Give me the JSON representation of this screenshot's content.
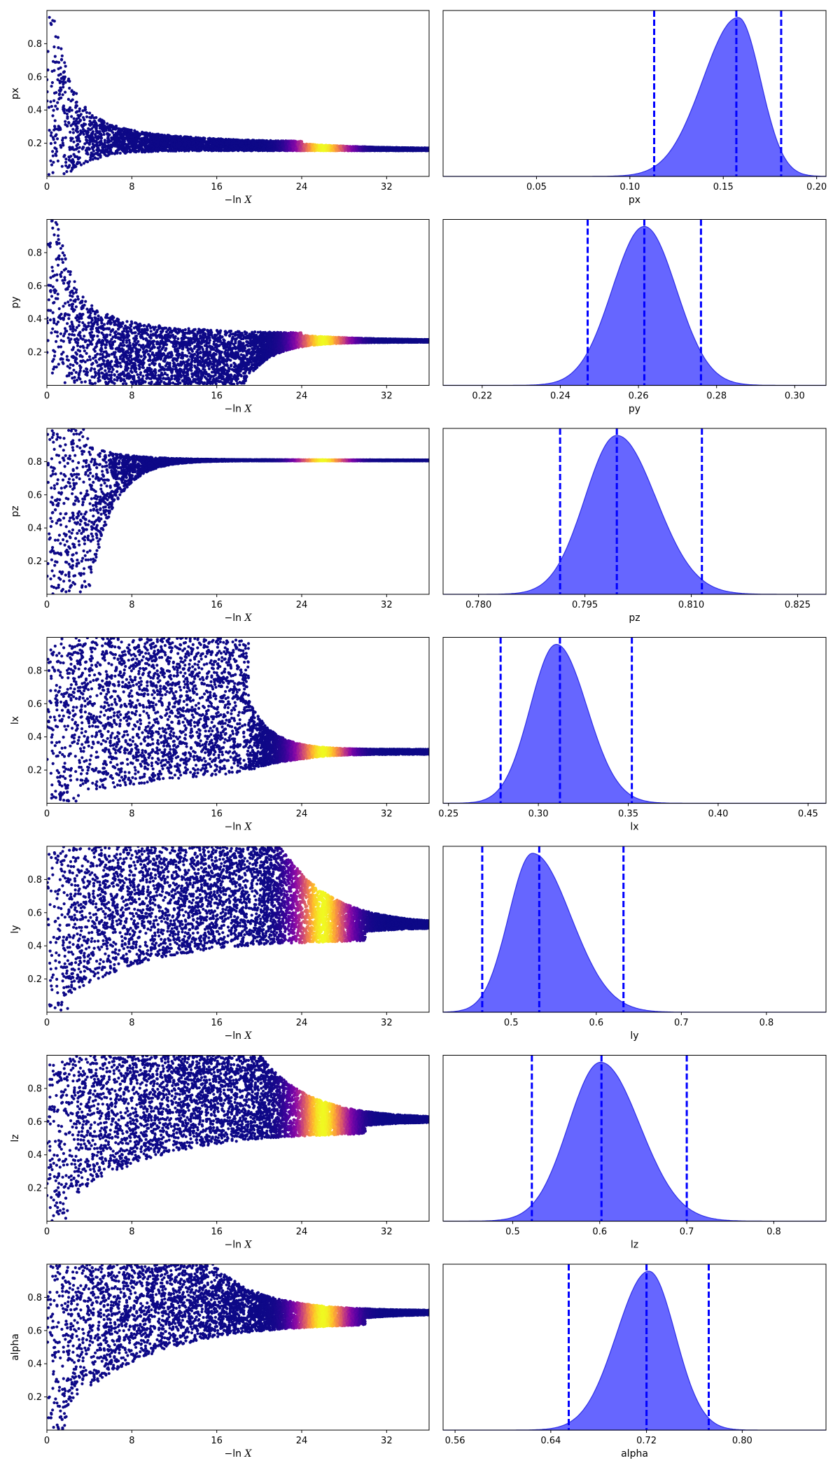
{
  "chart_data": [
    {
      "type": "scatter",
      "ylabel": "px",
      "xlabel_prefix": "−ln",
      "xlabel_var": "X",
      "xlim": [
        0,
        36
      ],
      "ylim": [
        0,
        1
      ],
      "xticks": [
        0,
        8,
        16,
        24,
        32
      ],
      "yticks": [
        0.2,
        0.4,
        0.6,
        0.8
      ],
      "ytick_labels": [
        "0.2",
        "0.4",
        "0.6",
        "0.8"
      ],
      "xtick_labels": [
        "0",
        "8",
        "16",
        "24",
        "32"
      ],
      "asymptote": 0.155,
      "shape": "collapse",
      "x_lower_edge": 2.0,
      "band_center": 26
    },
    {
      "type": "area",
      "xlabel": "px",
      "xlim": [
        0.0,
        0.205
      ],
      "mean": 0.158,
      "sd_left": 0.019,
      "sd_right": 0.012,
      "xticks": [
        0.05,
        0.1,
        0.15,
        0.2
      ],
      "xtick_labels": [
        "0.05",
        "0.10",
        "0.15",
        "0.20"
      ],
      "quantiles": [
        0.113,
        0.157,
        0.181
      ],
      "fill_color": "#6666ff",
      "edge_color": "#2e2ee6",
      "line_color": "#0000ff"
    },
    {
      "type": "scatter",
      "ylabel": "py",
      "xlabel_prefix": "−ln",
      "xlabel_var": "X",
      "xlim": [
        0,
        36
      ],
      "ylim": [
        0,
        1
      ],
      "xticks": [
        0,
        8,
        16,
        24,
        32
      ],
      "yticks": [
        0.2,
        0.4,
        0.6,
        0.8
      ],
      "ytick_labels": [
        "0.2",
        "0.4",
        "0.6",
        "0.8"
      ],
      "xtick_labels": [
        "0",
        "8",
        "16",
        "24",
        "32"
      ],
      "asymptote": 0.26,
      "shape": "collapse",
      "x_lower_edge": 18.5,
      "band_center": 26
    },
    {
      "type": "area",
      "xlabel": "py",
      "xlim": [
        0.21,
        0.308
      ],
      "mean": 0.2615,
      "sd_left": 0.0082,
      "sd_right": 0.0082,
      "xticks": [
        0.22,
        0.24,
        0.26,
        0.28,
        0.3
      ],
      "xtick_labels": [
        "0.22",
        "0.24",
        "0.26",
        "0.28",
        "0.30"
      ],
      "quantiles": [
        0.247,
        0.2615,
        0.276
      ],
      "fill_color": "#6666ff",
      "edge_color": "#2e2ee6",
      "line_color": "#0000ff"
    },
    {
      "type": "scatter",
      "ylabel": "pz",
      "xlabel_prefix": "−ln",
      "xlabel_var": "X",
      "xlim": [
        0,
        36
      ],
      "ylim": [
        0,
        1
      ],
      "xticks": [
        0,
        8,
        16,
        24,
        32
      ],
      "yticks": [
        0.2,
        0.4,
        0.6,
        0.8
      ],
      "ytick_labels": [
        "0.2",
        "0.4",
        "0.6",
        "0.8"
      ],
      "xtick_labels": [
        "0",
        "8",
        "16",
        "24",
        "32"
      ],
      "asymptote": 0.805,
      "shape": "rise",
      "x_lower_edge": 4.0,
      "band_center": 26
    },
    {
      "type": "area",
      "xlabel": "pz",
      "xlim": [
        0.775,
        0.829
      ],
      "mean": 0.7995,
      "sd_left": 0.0045,
      "sd_right": 0.0055,
      "xticks": [
        0.78,
        0.795,
        0.81,
        0.825
      ],
      "xtick_labels": [
        "0.780",
        "0.795",
        "0.810",
        "0.825"
      ],
      "quantiles": [
        0.7915,
        0.7995,
        0.8115
      ],
      "fill_color": "#6666ff",
      "edge_color": "#2e2ee6",
      "line_color": "#0000ff"
    },
    {
      "type": "scatter",
      "ylabel": "lx",
      "xlabel_prefix": "−ln",
      "xlabel_var": "X",
      "xlim": [
        0,
        36
      ],
      "ylim": [
        0,
        1
      ],
      "xticks": [
        0,
        8,
        16,
        24,
        32
      ],
      "yticks": [
        0.2,
        0.4,
        0.6,
        0.8
      ],
      "ytick_labels": [
        "0.2",
        "0.4",
        "0.6",
        "0.8"
      ],
      "xtick_labels": [
        "0",
        "8",
        "16",
        "24",
        "32"
      ],
      "asymptote": 0.31,
      "shape": "wide",
      "x_plateau": 19,
      "band_center": 26
    },
    {
      "type": "area",
      "xlabel": "lx",
      "xlim": [
        0.247,
        0.46
      ],
      "mean": 0.31,
      "sd_left": 0.0145,
      "sd_right": 0.017,
      "xticks": [
        0.25,
        0.3,
        0.35,
        0.4,
        0.45
      ],
      "xtick_labels": [
        "0.25",
        "0.30",
        "0.35",
        "0.40",
        "0.45"
      ],
      "quantiles": [
        0.279,
        0.312,
        0.352
      ],
      "fill_color": "#6666ff",
      "edge_color": "#2e2ee6",
      "line_color": "#0000ff"
    },
    {
      "type": "scatter",
      "ylabel": "ly",
      "xlabel_prefix": "−ln",
      "xlabel_var": "X",
      "xlim": [
        0,
        36
      ],
      "ylim": [
        0,
        1
      ],
      "xticks": [
        0,
        8,
        16,
        24,
        32
      ],
      "yticks": [
        0.2,
        0.4,
        0.6,
        0.8
      ],
      "ytick_labels": [
        "0.2",
        "0.4",
        "0.6",
        "0.8"
      ],
      "xtick_labels": [
        "0",
        "8",
        "16",
        "24",
        "32"
      ],
      "asymptote": 0.52,
      "shape": "funnel",
      "x_plateau": 22,
      "band_center": 26
    },
    {
      "type": "area",
      "xlabel": "ly",
      "xlim": [
        0.42,
        0.87
      ],
      "mean": 0.525,
      "sd_left": 0.028,
      "sd_right": 0.045,
      "xticks": [
        0.5,
        0.6,
        0.7,
        0.8
      ],
      "xtick_labels": [
        "0.5",
        "0.6",
        "0.7",
        "0.8"
      ],
      "quantiles": [
        0.466,
        0.533,
        0.632
      ],
      "fill_color": "#6666ff",
      "edge_color": "#2e2ee6",
      "line_color": "#0000ff"
    },
    {
      "type": "scatter",
      "ylabel": "lz",
      "xlabel_prefix": "−ln",
      "xlabel_var": "X",
      "xlim": [
        0,
        36
      ],
      "ylim": [
        0,
        1
      ],
      "xticks": [
        0,
        8,
        16,
        24,
        32
      ],
      "yticks": [
        0.2,
        0.4,
        0.6,
        0.8
      ],
      "ytick_labels": [
        "0.2",
        "0.4",
        "0.6",
        "0.8"
      ],
      "xtick_labels": [
        "0",
        "8",
        "16",
        "24",
        "32"
      ],
      "asymptote": 0.61,
      "shape": "funnel",
      "x_plateau": 20,
      "band_center": 26
    },
    {
      "type": "area",
      "xlabel": "lz",
      "xlim": [
        0.42,
        0.86
      ],
      "mean": 0.601,
      "sd_left": 0.037,
      "sd_right": 0.045,
      "xticks": [
        0.5,
        0.6,
        0.7,
        0.8
      ],
      "xtick_labels": [
        "0.5",
        "0.6",
        "0.7",
        "0.8"
      ],
      "quantiles": [
        0.522,
        0.602,
        0.7
      ],
      "fill_color": "#6666ff",
      "edge_color": "#2e2ee6",
      "line_color": "#0000ff"
    },
    {
      "type": "scatter",
      "ylabel": "alpha",
      "xlabel_prefix": "−ln",
      "xlabel_var": "X",
      "xlim": [
        0,
        36
      ],
      "ylim": [
        0,
        1
      ],
      "xticks": [
        0,
        8,
        16,
        24,
        32
      ],
      "yticks": [
        0.2,
        0.4,
        0.6,
        0.8
      ],
      "ytick_labels": [
        "0.2",
        "0.4",
        "0.6",
        "0.8"
      ],
      "xtick_labels": [
        "0",
        "8",
        "16",
        "24",
        "32"
      ],
      "asymptote": 0.71,
      "shape": "funnel",
      "x_plateau": 15.5,
      "band_center": 26
    },
    {
      "type": "area",
      "xlabel": "alpha",
      "xlim": [
        0.55,
        0.87
      ],
      "mean": 0.722,
      "sd_left": 0.027,
      "sd_right": 0.022,
      "xticks": [
        0.56,
        0.64,
        0.72,
        0.8
      ],
      "xtick_labels": [
        "0.56",
        "0.64",
        "0.72",
        "0.80"
      ],
      "quantiles": [
        0.655,
        0.72,
        0.772
      ],
      "fill_color": "#6666ff",
      "edge_color": "#2e2ee6",
      "line_color": "#0000ff"
    }
  ]
}
